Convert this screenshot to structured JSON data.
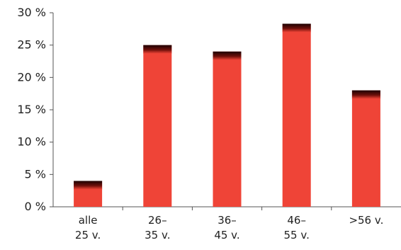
{
  "chart_data": {
    "type": "bar",
    "categories": [
      [
        "alle",
        "25 v."
      ],
      [
        "26–",
        "35 v."
      ],
      [
        "36–",
        "45 v."
      ],
      [
        "46–",
        "55 v."
      ],
      [
        ">56 v."
      ]
    ],
    "values": [
      4,
      25,
      24,
      28.3,
      18
    ],
    "ylim": [
      0,
      30
    ],
    "yticks": [
      0,
      5,
      10,
      15,
      20,
      25,
      30
    ],
    "ytick_suffix": " %",
    "title": "",
    "xlabel": "",
    "ylabel": "",
    "grid": false,
    "colors": {
      "bar": "#ef4437",
      "bar_top": "#2a0505",
      "axis": "#555555"
    }
  }
}
